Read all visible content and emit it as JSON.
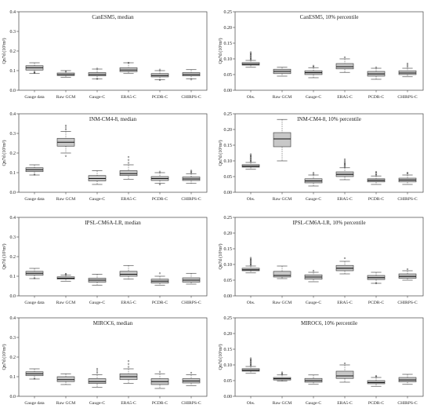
{
  "chart_data": [
    {
      "type": "boxplot",
      "title": "CanESM5, median",
      "ylabel": "Qn7d (10³m³)",
      "ylim": [
        0,
        0.4
      ],
      "yticks": [
        "0.0",
        "0.1",
        "0.2",
        "0.3",
        "0.4"
      ],
      "categories": [
        "Gauge data",
        "Raw GCM",
        "Gauge-C",
        "ERA5-C",
        "PCDR-C",
        "CHIRPS-C"
      ],
      "boxes": [
        {
          "min": 0.085,
          "q1": 0.103,
          "median": 0.115,
          "q3": 0.125,
          "max": 0.14,
          "outliers": [
            0.09,
            0.092
          ]
        },
        {
          "min": 0.065,
          "q1": 0.075,
          "median": 0.08,
          "q3": 0.088,
          "max": 0.1,
          "outliers": [
            0.095
          ]
        },
        {
          "min": 0.057,
          "q1": 0.073,
          "median": 0.08,
          "q3": 0.09,
          "max": 0.108,
          "outliers": [
            0.058,
            0.11
          ]
        },
        {
          "min": 0.085,
          "q1": 0.095,
          "median": 0.103,
          "q3": 0.115,
          "max": 0.14,
          "outliers": [
            0.14
          ]
        },
        {
          "min": 0.053,
          "q1": 0.068,
          "median": 0.075,
          "q3": 0.085,
          "max": 0.1,
          "outliers": [
            0.052,
            0.105
          ]
        },
        {
          "min": 0.058,
          "q1": 0.073,
          "median": 0.08,
          "q3": 0.09,
          "max": 0.105,
          "outliers": [
            0.055
          ]
        }
      ]
    },
    {
      "type": "boxplot",
      "title": "CanESM5, 10% percentile",
      "ylabel": "Qn7d (10³m³)",
      "ylim": [
        0,
        0.25
      ],
      "yticks": [
        "0.00",
        "0.05",
        "0.10",
        "0.15",
        "0.20",
        "0.25"
      ],
      "categories": [
        "Obs.",
        "Raw GCM",
        "Gauge-C",
        "ERA5-C",
        "PCDR-C",
        "CHIRPS-C"
      ],
      "boxes": [
        {
          "min": 0.073,
          "q1": 0.08,
          "median": 0.083,
          "q3": 0.088,
          "max": 0.095,
          "outliers": [
            0.097,
            0.1,
            0.103,
            0.106,
            0.109,
            0.112,
            0.115,
            0.118,
            0.121
          ]
        },
        {
          "min": 0.045,
          "q1": 0.053,
          "median": 0.06,
          "q3": 0.067,
          "max": 0.073,
          "outliers": []
        },
        {
          "min": 0.04,
          "q1": 0.05,
          "median": 0.056,
          "q3": 0.062,
          "max": 0.072,
          "outliers": [
            0.075,
            0.078
          ]
        },
        {
          "min": 0.057,
          "q1": 0.068,
          "median": 0.075,
          "q3": 0.085,
          "max": 0.1,
          "outliers": [
            0.105
          ]
        },
        {
          "min": 0.035,
          "q1": 0.045,
          "median": 0.052,
          "q3": 0.06,
          "max": 0.07,
          "outliers": [
            0.073
          ]
        },
        {
          "min": 0.043,
          "q1": 0.05,
          "median": 0.055,
          "q3": 0.062,
          "max": 0.07,
          "outliers": [
            0.075,
            0.08,
            0.085
          ]
        }
      ]
    },
    {
      "type": "boxplot",
      "title": "INM-CM4-8, median",
      "ylabel": "Qn7d (10³m³)",
      "ylim": [
        0,
        0.4
      ],
      "yticks": [
        "0.0",
        "0.1",
        "0.2",
        "0.3",
        "0.4"
      ],
      "categories": [
        "Gauge data",
        "Raw GCM",
        "Gauge-C",
        "ERA5-C",
        "PCDR-C",
        "CHIRPS-C"
      ],
      "boxes": [
        {
          "min": 0.088,
          "q1": 0.105,
          "median": 0.115,
          "q3": 0.125,
          "max": 0.14,
          "outliers": [
            0.09
          ]
        },
        {
          "min": 0.2,
          "q1": 0.235,
          "median": 0.255,
          "q3": 0.275,
          "max": 0.31,
          "outliers": [
            0.185,
            0.32,
            0.33,
            0.34
          ]
        },
        {
          "min": 0.04,
          "q1": 0.058,
          "median": 0.07,
          "q3": 0.085,
          "max": 0.11,
          "outliers": []
        },
        {
          "min": 0.065,
          "q1": 0.085,
          "median": 0.095,
          "q3": 0.11,
          "max": 0.14,
          "outliers": [
            0.15,
            0.165,
            0.18
          ]
        },
        {
          "min": 0.045,
          "q1": 0.06,
          "median": 0.07,
          "q3": 0.08,
          "max": 0.1,
          "outliers": [
            0.04,
            0.105
          ]
        },
        {
          "min": 0.045,
          "q1": 0.06,
          "median": 0.068,
          "q3": 0.078,
          "max": 0.095,
          "outliers": [
            0.1,
            0.105,
            0.11
          ]
        }
      ]
    },
    {
      "type": "boxplot",
      "title": "INM-CM4-8, 10% percentile",
      "ylabel": "Qn7d (10³m³)",
      "ylim": [
        0,
        0.25
      ],
      "yticks": [
        "0.00",
        "0.05",
        "0.10",
        "0.15",
        "0.20",
        "0.25"
      ],
      "categories": [
        "Obs.",
        "Raw GCM",
        "Gauge-C",
        "ERA5-C",
        "PCDR-C",
        "CHIRPS-C"
      ],
      "boxes": [
        {
          "min": 0.073,
          "q1": 0.08,
          "median": 0.083,
          "q3": 0.088,
          "max": 0.095,
          "outliers": [
            0.097,
            0.1,
            0.103,
            0.106,
            0.109,
            0.112,
            0.115,
            0.118,
            0.121
          ]
        },
        {
          "min": 0.1,
          "q1": 0.145,
          "median": 0.17,
          "q3": 0.19,
          "max": 0.232,
          "outliers": []
        },
        {
          "min": 0.02,
          "q1": 0.03,
          "median": 0.036,
          "q3": 0.043,
          "max": 0.055,
          "outliers": [
            0.058,
            0.062
          ]
        },
        {
          "min": 0.04,
          "q1": 0.05,
          "median": 0.057,
          "q3": 0.065,
          "max": 0.078,
          "outliers": [
            0.081,
            0.084,
            0.087,
            0.09,
            0.093,
            0.096,
            0.1,
            0.105
          ]
        },
        {
          "min": 0.025,
          "q1": 0.033,
          "median": 0.038,
          "q3": 0.043,
          "max": 0.052,
          "outliers": [
            0.055,
            0.058,
            0.062,
            0.065
          ]
        },
        {
          "min": 0.025,
          "q1": 0.033,
          "median": 0.039,
          "q3": 0.045,
          "max": 0.055,
          "outliers": [
            0.06,
            0.062
          ]
        }
      ]
    },
    {
      "type": "boxplot",
      "title": "IPSL-CM6A-LR, median",
      "ylabel": "Qn7d (10³m³)",
      "ylim": [
        0,
        0.4
      ],
      "yticks": [
        "0.0",
        "0.1",
        "0.2",
        "0.3",
        "0.4"
      ],
      "categories": [
        "Gauge data",
        "Raw GCM",
        "Gauge-C",
        "ERA5-C",
        "PCDR-C",
        "CHIRPS-C"
      ],
      "boxes": [
        {
          "min": 0.088,
          "q1": 0.105,
          "median": 0.115,
          "q3": 0.125,
          "max": 0.14,
          "outliers": [
            0.09
          ]
        },
        {
          "min": 0.075,
          "q1": 0.085,
          "median": 0.09,
          "q3": 0.097,
          "max": 0.105,
          "outliers": [
            0.11,
            0.112
          ]
        },
        {
          "min": 0.055,
          "q1": 0.07,
          "median": 0.08,
          "q3": 0.09,
          "max": 0.11,
          "outliers": []
        },
        {
          "min": 0.085,
          "q1": 0.1,
          "median": 0.11,
          "q3": 0.125,
          "max": 0.155,
          "outliers": []
        },
        {
          "min": 0.055,
          "q1": 0.065,
          "median": 0.075,
          "q3": 0.085,
          "max": 0.1,
          "outliers": [
            0.115
          ]
        },
        {
          "min": 0.06,
          "q1": 0.07,
          "median": 0.08,
          "q3": 0.092,
          "max": 0.115,
          "outliers": []
        }
      ]
    },
    {
      "type": "boxplot",
      "title": "IPSL-CM6A-LR, 10% percentile",
      "ylabel": "Qn7d (10³m³)",
      "ylim": [
        0,
        0.25
      ],
      "yticks": [
        "0.00",
        "0.05",
        "0.10",
        "0.15",
        "0.20",
        "0.25"
      ],
      "categories": [
        "Obs.",
        "Raw GCM",
        "Gauge-C",
        "ERA5-C",
        "PCDR-C",
        "CHIRPS-C"
      ],
      "boxes": [
        {
          "min": 0.073,
          "q1": 0.08,
          "median": 0.083,
          "q3": 0.088,
          "max": 0.095,
          "outliers": [
            0.097,
            0.1,
            0.103,
            0.106,
            0.109,
            0.112,
            0.115,
            0.118,
            0.121
          ]
        },
        {
          "min": 0.055,
          "q1": 0.06,
          "median": 0.065,
          "q3": 0.078,
          "max": 0.095,
          "outliers": []
        },
        {
          "min": 0.045,
          "q1": 0.053,
          "median": 0.06,
          "q3": 0.067,
          "max": 0.075,
          "outliers": [
            0.08
          ]
        },
        {
          "min": 0.07,
          "q1": 0.08,
          "median": 0.088,
          "q3": 0.097,
          "max": 0.11,
          "outliers": [
            0.12
          ]
        },
        {
          "min": 0.04,
          "q1": 0.052,
          "median": 0.058,
          "q3": 0.065,
          "max": 0.075,
          "outliers": [
            0.04
          ]
        },
        {
          "min": 0.05,
          "q1": 0.056,
          "median": 0.062,
          "q3": 0.07,
          "max": 0.08,
          "outliers": [
            0.085
          ]
        }
      ]
    },
    {
      "type": "boxplot",
      "title": "MIROC6, median",
      "ylabel": "Qn7d (10³m³)",
      "ylim": [
        0,
        0.4
      ],
      "yticks": [
        "0.0",
        "0.1",
        "0.2",
        "0.3",
        "0.4"
      ],
      "categories": [
        "Gauge data",
        "Raw GCM",
        "Gauge-C",
        "ERA5-C",
        "PCDR-C",
        "CHIRPS-C"
      ],
      "boxes": [
        {
          "min": 0.088,
          "q1": 0.105,
          "median": 0.115,
          "q3": 0.125,
          "max": 0.14,
          "outliers": [
            0.09
          ]
        },
        {
          "min": 0.06,
          "q1": 0.075,
          "median": 0.085,
          "q3": 0.1,
          "max": 0.115,
          "outliers": []
        },
        {
          "min": 0.045,
          "q1": 0.065,
          "median": 0.075,
          "q3": 0.09,
          "max": 0.11,
          "outliers": [
            0.12,
            0.13,
            0.14
          ]
        },
        {
          "min": 0.065,
          "q1": 0.085,
          "median": 0.1,
          "q3": 0.115,
          "max": 0.14,
          "outliers": [
            0.15,
            0.165,
            0.18
          ]
        },
        {
          "min": 0.04,
          "q1": 0.06,
          "median": 0.075,
          "q3": 0.09,
          "max": 0.115,
          "outliers": [
            0.125
          ]
        },
        {
          "min": 0.055,
          "q1": 0.068,
          "median": 0.078,
          "q3": 0.09,
          "max": 0.11,
          "outliers": [
            0.12
          ]
        }
      ]
    },
    {
      "type": "boxplot",
      "title": "MIROC6, 10% percentile",
      "ylabel": "Qn7d (10³m³)",
      "ylim": [
        0,
        0.25
      ],
      "yticks": [
        "0.00",
        "0.05",
        "0.10",
        "0.15",
        "0.20",
        "0.25"
      ],
      "categories": [
        "Obs.",
        "Raw GCM",
        "Gauge-C",
        "ERA5-C",
        "PCDR-C",
        "CHIRPS-C"
      ],
      "boxes": [
        {
          "min": 0.073,
          "q1": 0.08,
          "median": 0.083,
          "q3": 0.088,
          "max": 0.095,
          "outliers": [
            0.097,
            0.1,
            0.103,
            0.106,
            0.109,
            0.112,
            0.115,
            0.118,
            0.121
          ]
        },
        {
          "min": 0.048,
          "q1": 0.052,
          "median": 0.056,
          "q3": 0.06,
          "max": 0.068,
          "outliers": [
            0.07,
            0.073,
            0.076
          ]
        },
        {
          "min": 0.038,
          "q1": 0.045,
          "median": 0.05,
          "q3": 0.057,
          "max": 0.068,
          "outliers": []
        },
        {
          "min": 0.045,
          "q1": 0.057,
          "median": 0.065,
          "q3": 0.08,
          "max": 0.1,
          "outliers": [
            0.105
          ]
        },
        {
          "min": 0.032,
          "q1": 0.04,
          "median": 0.044,
          "q3": 0.05,
          "max": 0.06,
          "outliers": [
            0.062,
            0.065
          ]
        },
        {
          "min": 0.038,
          "q1": 0.046,
          "median": 0.052,
          "q3": 0.06,
          "max": 0.07,
          "outliers": []
        }
      ]
    }
  ]
}
